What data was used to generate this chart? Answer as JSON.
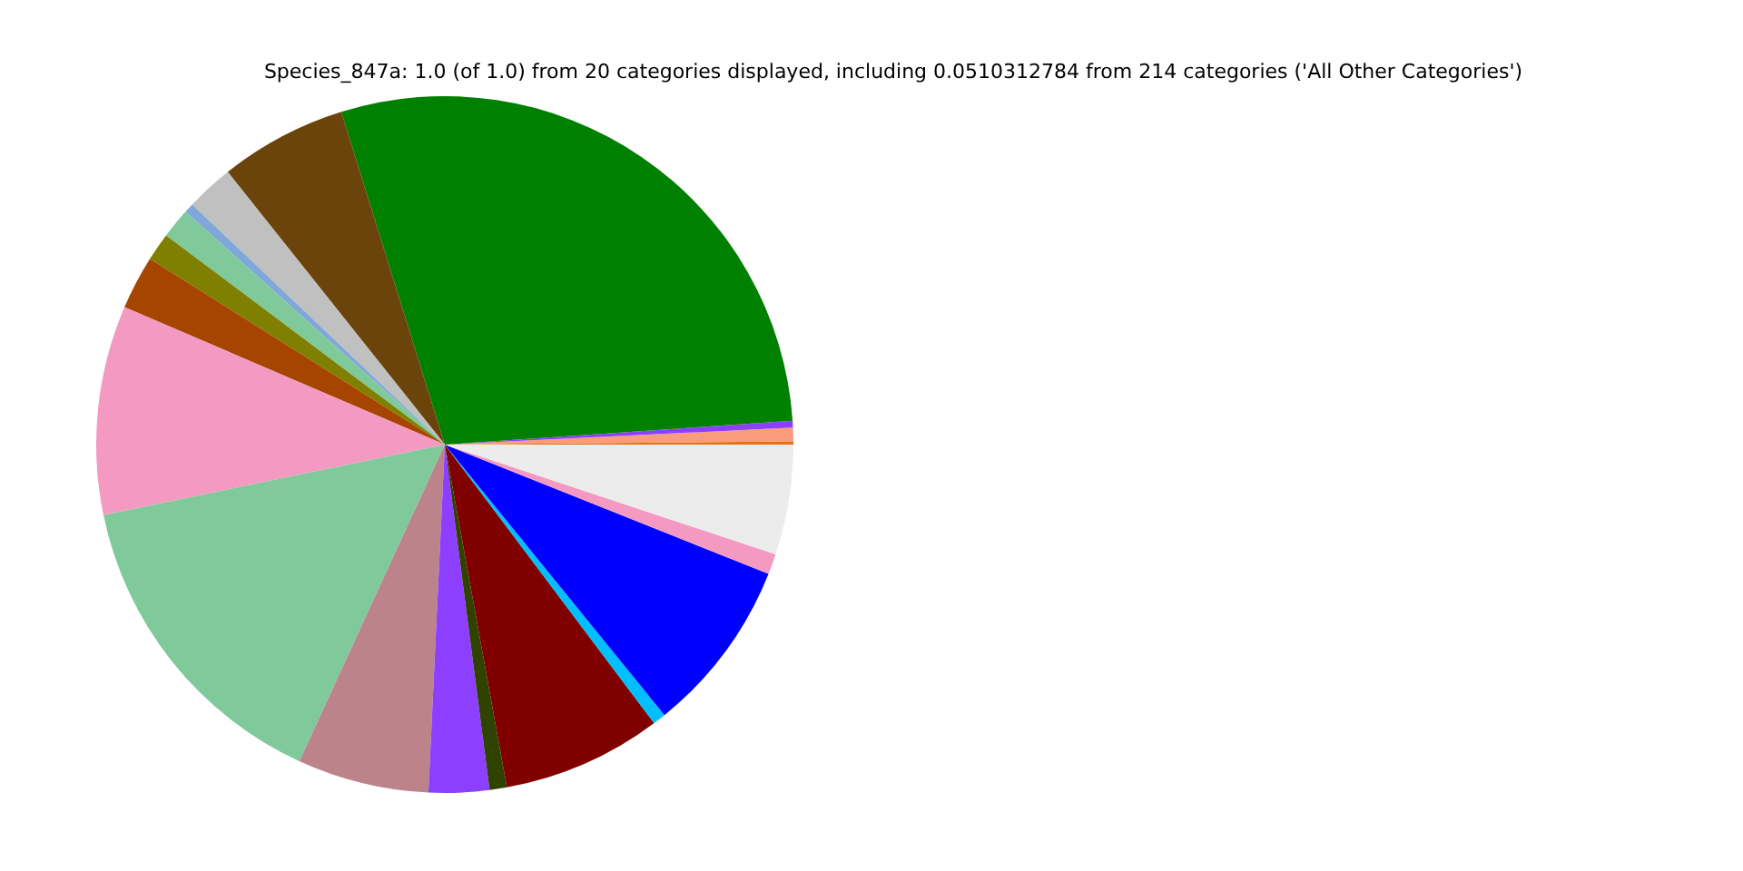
{
  "chart_data": {
    "type": "pie",
    "title": "Species_847a: 1.0 (of 1.0) from 20 categories displayed, including 0.0510312784 from 214 categories ('All Other Categories')",
    "categories": [
      null,
      null,
      null,
      null,
      null,
      null,
      null,
      null,
      null,
      null,
      null,
      null,
      null,
      null,
      null,
      null,
      null,
      null,
      null,
      null
    ],
    "values": [
      0.14,
      0.64,
      0.31,
      28.71,
      5.9,
      2.2,
      0.45,
      1.4,
      1.3,
      2.5,
      9.7,
      14.9,
      6.1,
      2.8,
      0.8,
      7.4,
      0.6,
      8.1,
      0.95,
      5.1
    ],
    "colors": [
      "#e8700a",
      "#f89c7c",
      "#8c3fff",
      "#008000",
      "#6b440c",
      "#c0c0c0",
      "#7fa8d8",
      "#80c99b",
      "#808000",
      "#a64500",
      "#f49ac2",
      "#80c99b",
      "#bc838b",
      "#8c3fff",
      "#2f4200",
      "#800000",
      "#00bfff",
      "#0000ff",
      "#f49ac2",
      "#ececec"
    ]
  }
}
